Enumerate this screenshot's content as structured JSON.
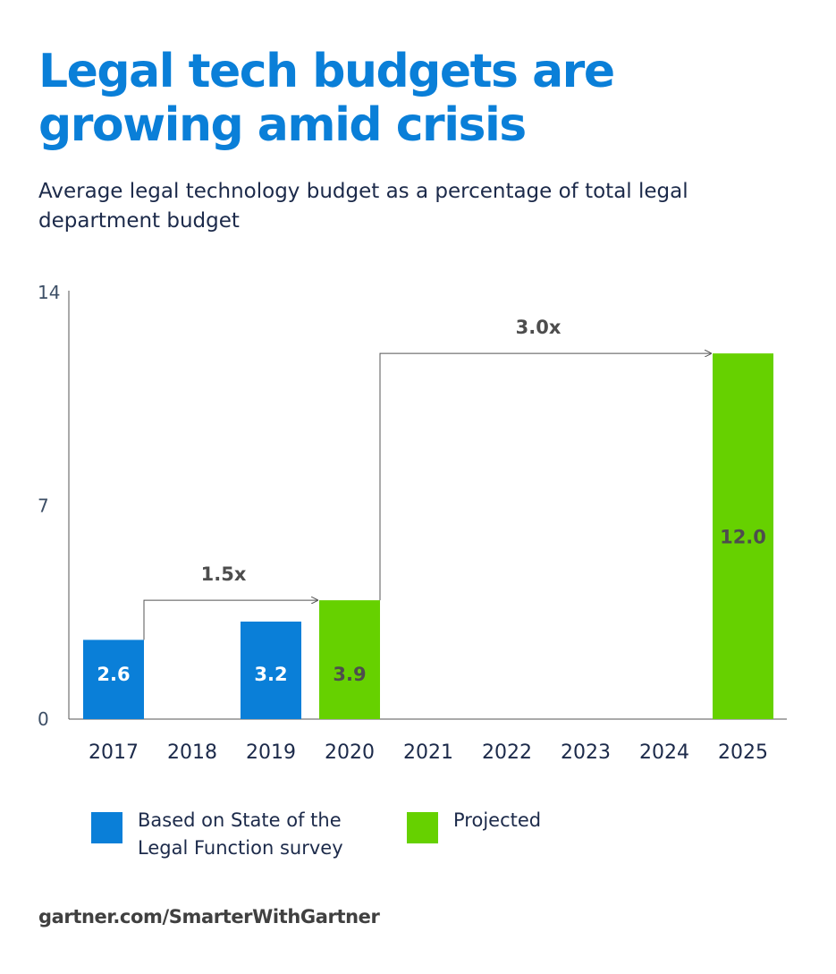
{
  "title": "Legal tech budgets are growing amid crisis",
  "subtitle": "Average legal technology budget as a percentage of total legal department budget",
  "chart_data": {
    "type": "bar",
    "title": "Legal tech budgets are growing amid crisis",
    "subtitle": "Average legal technology budget as a percentage of total legal department budget",
    "xlabel": "",
    "ylabel": "",
    "ylim": [
      0,
      14
    ],
    "yticks": [
      "0",
      "7",
      "14"
    ],
    "categories": [
      "2017",
      "2018",
      "2019",
      "2020",
      "2021",
      "2022",
      "2023",
      "2024",
      "2025"
    ],
    "series": [
      {
        "name": "Based on State of the Legal Function survey",
        "color": "#0a7fd8",
        "label_color": "#ffffff",
        "values": [
          2.6,
          null,
          3.2,
          null,
          null,
          null,
          null,
          null,
          null
        ],
        "labels": [
          "2.6",
          null,
          "3.2",
          null,
          null,
          null,
          null,
          null,
          null
        ]
      },
      {
        "name": "Projected",
        "color": "#66d100",
        "label_color": "#4d4d4d",
        "values": [
          null,
          null,
          null,
          3.9,
          null,
          null,
          null,
          null,
          12.0
        ],
        "labels": [
          null,
          null,
          null,
          "3.9",
          null,
          null,
          null,
          null,
          "12.0"
        ]
      }
    ],
    "annotations": [
      {
        "text": "1.5x",
        "from": "2017",
        "to": "2020"
      },
      {
        "text": "3.0x",
        "from": "2020",
        "to": "2025"
      }
    ],
    "grid": false,
    "legend": "bottom-left"
  },
  "legend": [
    {
      "label": "Based on State of the Legal Function survey",
      "color": "#0a7fd8"
    },
    {
      "label": "Projected",
      "color": "#66d100"
    }
  ],
  "footer": "gartner.com/SmarterWithGartner"
}
